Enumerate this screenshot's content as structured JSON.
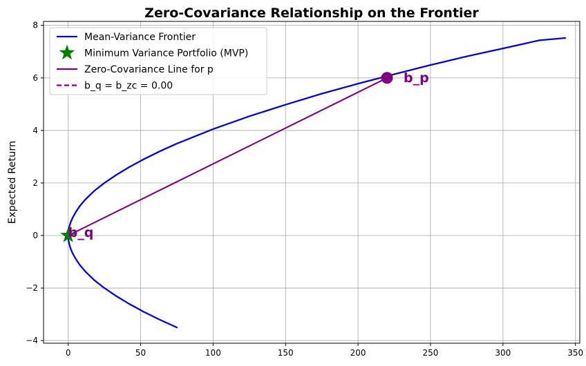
{
  "chart_data": {
    "type": "line",
    "title": "Zero-Covariance Relationship on the Frontier",
    "xlabel": "",
    "ylabel": "Expected Return",
    "xlim": [
      -17,
      353
    ],
    "ylim": [
      -4.1,
      8.15
    ],
    "xticks": [
      0,
      50,
      100,
      150,
      200,
      250,
      300,
      350
    ],
    "yticks": [
      -4,
      -2,
      0,
      2,
      4,
      6,
      8
    ],
    "ytick_labels": [
      "−4",
      "−2",
      "0",
      "2",
      "4",
      "6",
      "8"
    ],
    "grid": true,
    "legend_position": "top-left",
    "colors": {
      "frontier": "#0000ee",
      "mvp": "#008000",
      "zero_cov": "#800080",
      "grid": "#b0b0b0"
    },
    "series": [
      {
        "name": "Mean-Variance Frontier",
        "style": "solid",
        "color": "#0000ee",
        "x": [
          75,
          63,
          52,
          42,
          33,
          25,
          18,
          12,
          8,
          5,
          3,
          1.5,
          0.6,
          0.1,
          0,
          0.1,
          0.6,
          1.5,
          3,
          5,
          8,
          12,
          18,
          25,
          33,
          42,
          52,
          63,
          75,
          100,
          125,
          150,
          175,
          200,
          225,
          250,
          275,
          300,
          325,
          343
        ],
        "y": [
          -3.5,
          -3.2,
          -2.9,
          -2.6,
          -2.3,
          -2.0,
          -1.7,
          -1.38,
          -1.12,
          -0.87,
          -0.67,
          -0.47,
          -0.3,
          -0.13,
          0,
          0.13,
          0.3,
          0.47,
          0.67,
          0.87,
          1.12,
          1.38,
          1.7,
          2.0,
          2.3,
          2.6,
          2.9,
          3.2,
          3.5,
          4.05,
          4.54,
          4.98,
          5.4,
          5.78,
          6.14,
          6.49,
          6.82,
          7.12,
          7.43,
          7.52
        ]
      },
      {
        "name": "Zero-Covariance Line for p",
        "style": "solid",
        "color": "#800080",
        "x": [
          0,
          220
        ],
        "y": [
          0,
          6
        ]
      }
    ],
    "points": [
      {
        "name": "Minimum Variance Portfolio (MVP)",
        "marker": "star",
        "color": "#008000",
        "x": 0,
        "y": 0
      },
      {
        "label": "b_p",
        "marker": "circle",
        "color": "#800080",
        "x": 220,
        "y": 6
      }
    ],
    "annotations": [
      {
        "text": "b_p",
        "x": 220,
        "y": 6,
        "color": "#800080"
      },
      {
        "text": "b_q",
        "x": 0,
        "y": 0,
        "color": "#800080"
      }
    ],
    "legend": [
      {
        "label": "Mean-Variance Frontier",
        "kind": "line",
        "style": "solid",
        "color": "#0000ee"
      },
      {
        "label": "Minimum Variance Portfolio (MVP)",
        "kind": "star",
        "color": "#008000"
      },
      {
        "label": "Zero-Covariance Line for p",
        "kind": "line",
        "style": "solid",
        "color": "#800080"
      },
      {
        "label": "b_q = b_zc = 0.00",
        "kind": "line",
        "style": "dashed",
        "color": "#800080"
      }
    ]
  }
}
